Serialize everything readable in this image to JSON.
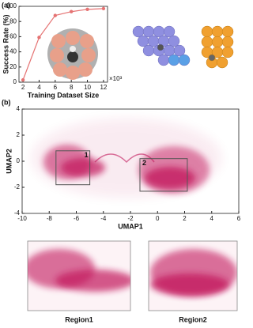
{
  "chart_data": [
    {
      "type": "line",
      "panel_label": "(a)",
      "xlabel": "Training Dataset Size",
      "ylabel": "Success Rate (%)",
      "x_multiplier": "×10³",
      "x": [
        2,
        4,
        6,
        8,
        10,
        12
      ],
      "series": [
        {
          "color": "#e57373",
          "values": [
            3,
            59,
            88,
            93,
            96,
            97
          ]
        }
      ],
      "xlim": [
        1.5,
        12.5
      ],
      "ylim": [
        0,
        100
      ],
      "xticks": [
        2,
        4,
        6,
        8,
        10,
        12
      ],
      "yticks": [
        0,
        20,
        40,
        60,
        80,
        100
      ]
    },
    {
      "type": "scatter",
      "panel_label": "(b)",
      "xlabel": "UMAP1",
      "ylabel": "UMAP2",
      "color": "#c2185b",
      "xlim": [
        -10,
        6
      ],
      "ylim": [
        -4,
        4
      ],
      "xticks": [
        -10,
        -8,
        -6,
        -4,
        -2,
        0,
        2,
        4,
        6
      ],
      "yticks": [
        -4,
        -2,
        0,
        2,
        4
      ],
      "regions": [
        {
          "label": "1",
          "name": "Region1",
          "x": [
            -7.5,
            -5
          ],
          "y": [
            -1.8,
            0.8
          ]
        },
        {
          "label": "2",
          "name": "Region2",
          "x": [
            -1.3,
            2.2
          ],
          "y": [
            -2.3,
            0.2
          ]
        }
      ]
    }
  ]
}
